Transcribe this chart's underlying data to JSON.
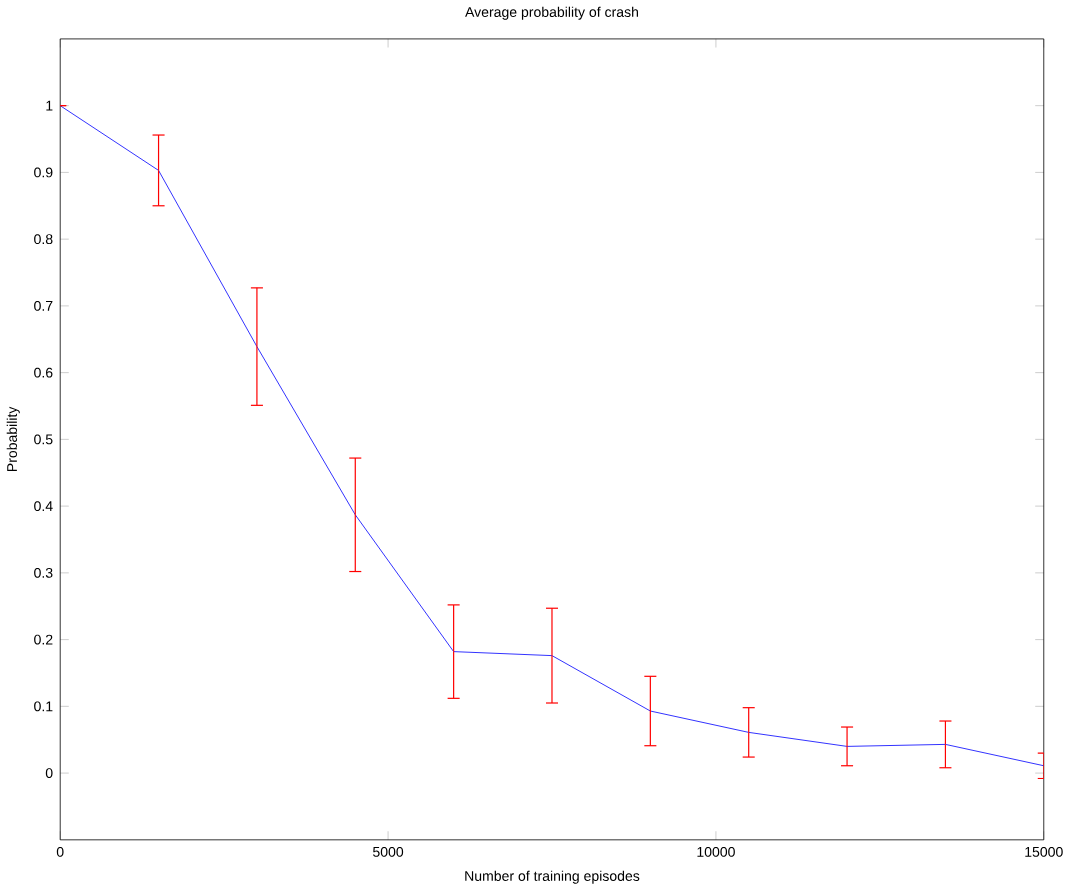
{
  "chart_data": {
    "type": "line",
    "title": "Average probability of crash",
    "xlabel": "Number of training episodes",
    "ylabel": "Probability",
    "x": [
      0,
      1500,
      3000,
      4500,
      6000,
      7500,
      9000,
      10500,
      12000,
      13500,
      15000
    ],
    "series": [
      {
        "color": "#0000ff",
        "values": [
          1.0,
          0.903,
          0.639,
          0.387,
          0.182,
          0.176,
          0.093,
          0.061,
          0.04,
          0.043,
          0.011
        ],
        "errors": [
          0,
          0.053,
          0.088,
          0.085,
          0.07,
          0.071,
          0.052,
          0.037,
          0.029,
          0.035,
          0.019
        ]
      }
    ],
    "xlim": [
      0,
      15000
    ],
    "ylim": [
      -0.1,
      1.1
    ],
    "xticks": [
      0,
      5000,
      10000,
      15000
    ],
    "yticks": [
      0,
      0.1,
      0.2,
      0.3,
      0.4,
      0.5,
      0.6,
      0.7,
      0.8,
      0.9,
      1
    ],
    "marker": "none"
  }
}
